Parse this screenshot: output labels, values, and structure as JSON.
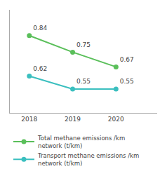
{
  "chart_data": {
    "type": "line",
    "x": [
      2018,
      2019,
      2020
    ],
    "series": [
      {
        "name": "Total methane emissions /km\nnetwork (t/km)",
        "color": "#5abf5a",
        "values": [
          0.84,
          0.75,
          0.67
        ]
      },
      {
        "name": "Transport methane emissions /km\nnetwork (t/km)",
        "color": "#3bbfbf",
        "values": [
          0.62,
          0.55,
          0.55
        ]
      }
    ],
    "xlim": [
      2017.55,
      2020.95
    ],
    "xticks": [
      2018,
      2019,
      2020
    ],
    "ylim": [
      0.42,
      0.98
    ],
    "tick_labels": "x",
    "data_labels": true,
    "grid": false,
    "legend": "bottom",
    "marker": "circle",
    "line_style": "solid"
  }
}
